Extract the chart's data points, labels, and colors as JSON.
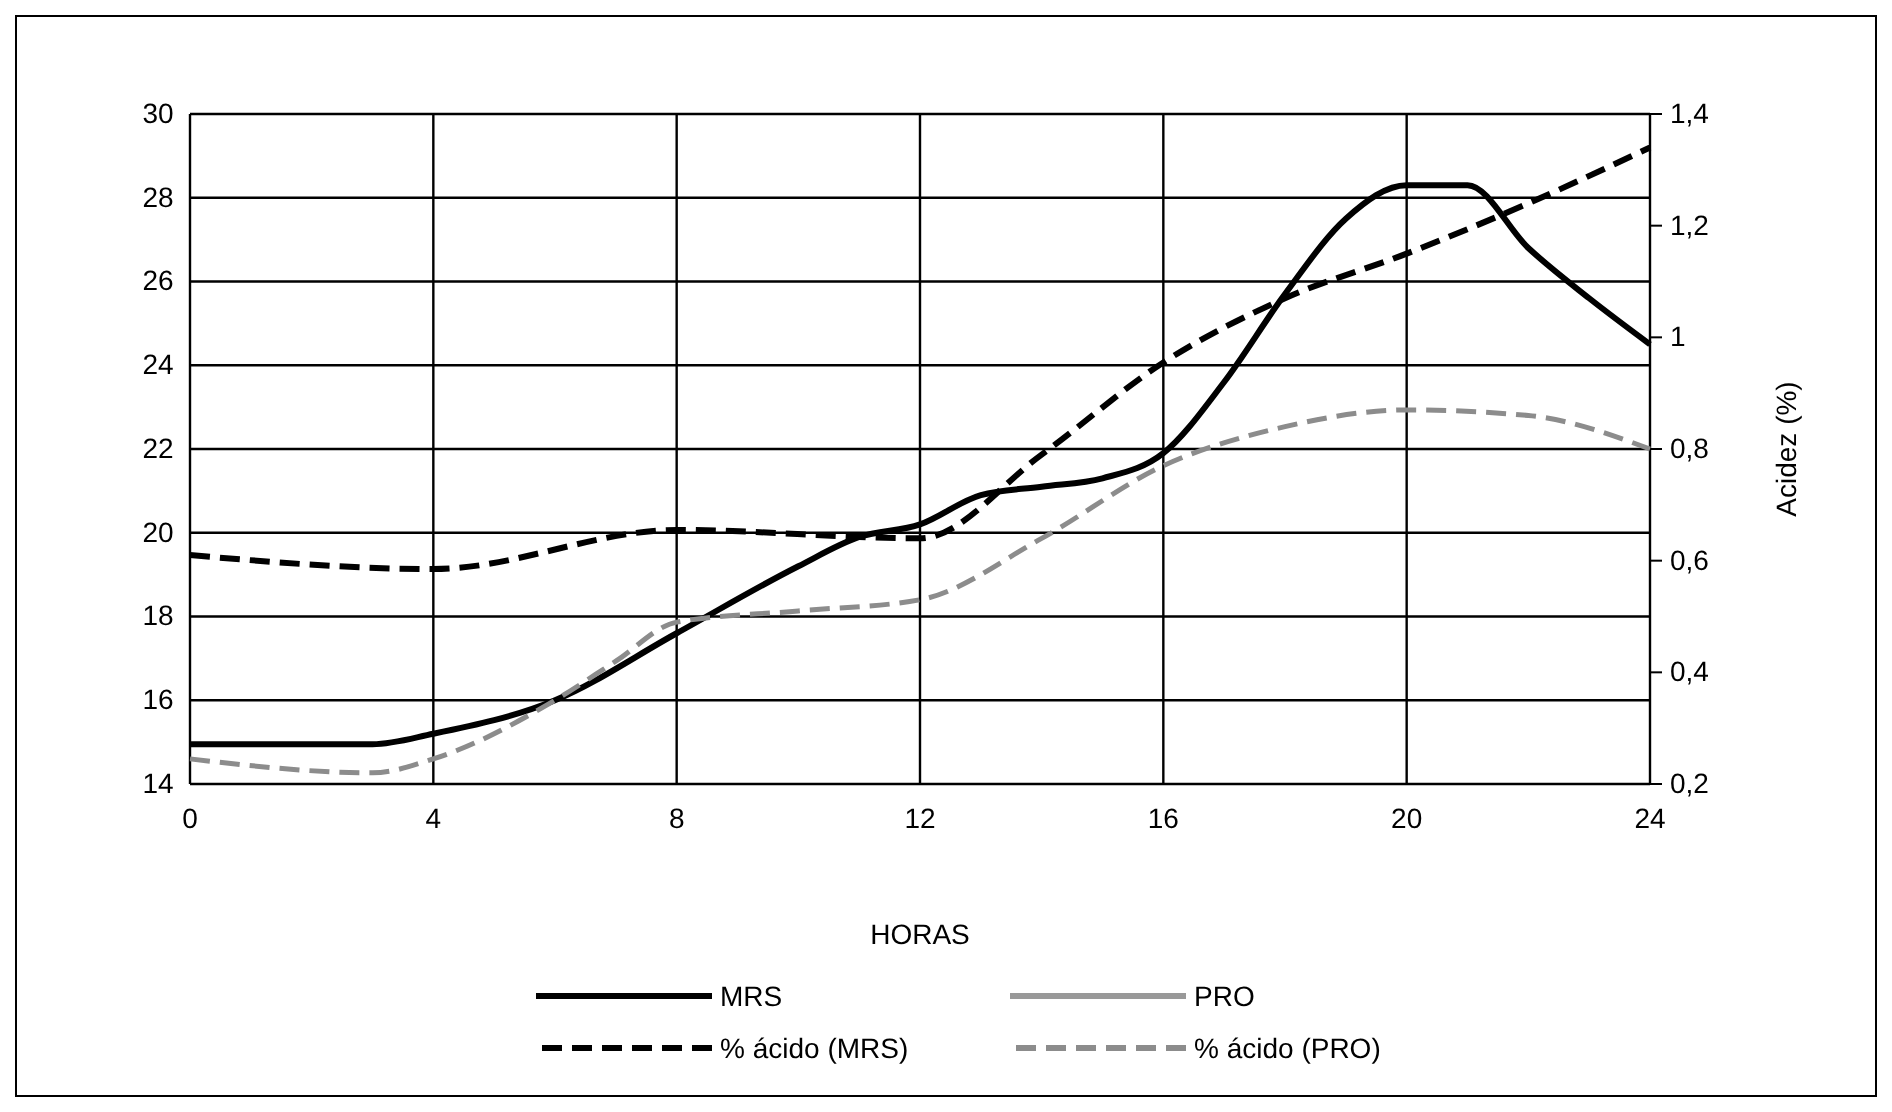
{
  "chart_data": {
    "type": "line",
    "xlabel": "HORAS",
    "y2label": "Acidez (%)",
    "xlim": [
      0,
      24
    ],
    "xticks": [
      0,
      4,
      8,
      12,
      16,
      20,
      24
    ],
    "ylim": [
      14,
      30
    ],
    "yticks": [
      14,
      16,
      18,
      20,
      22,
      24,
      26,
      28,
      30
    ],
    "y2lim": [
      0.2,
      1.4
    ],
    "y2ticks": [
      {
        "value": 0.2,
        "label": "0,2"
      },
      {
        "value": 0.4,
        "label": "0,4"
      },
      {
        "value": 0.6,
        "label": "0,6"
      },
      {
        "value": 0.8,
        "label": "0,8"
      },
      {
        "value": 1,
        "label": "1"
      },
      {
        "value": 1.2,
        "label": "1,2"
      },
      {
        "value": 1.4,
        "label": "1,4"
      }
    ],
    "grid": true,
    "legend": "bottom",
    "marker": "none",
    "series": [
      {
        "name": "MRS",
        "color": "#000000",
        "line_style": "solid",
        "x": [
          0,
          3,
          4,
          6,
          8,
          10,
          11,
          12,
          13,
          14,
          15,
          16,
          17,
          18,
          19,
          20,
          21,
          22,
          23,
          24
        ],
        "values": [
          14.95,
          14.95,
          15.2,
          16,
          17.6,
          19.2,
          19.9,
          20.2,
          20.9,
          21.1,
          21.3,
          21.9,
          23.6,
          25.7,
          27.5,
          28.3,
          28.3,
          26.8,
          25.6,
          24.5
        ]
      },
      {
        "name": "PRO",
        "color": "#999999",
        "line_style": "solid",
        "values": [
          null
        ]
      },
      {
        "name": "% ácido (MRS)",
        "color": "#000000",
        "line_style": "dashed",
        "axis": "y2",
        "x": [
          0,
          4,
          8,
          12,
          14,
          16,
          18,
          20,
          22,
          24
        ],
        "values": [
          0.61,
          0.585,
          0.655,
          0.64,
          0.79,
          0.955,
          1.07,
          1.15,
          1.24,
          1.34
        ]
      },
      {
        "name": "% ácido (PRO)",
        "color": "#8c8c8c",
        "line_style": "dashed",
        "axis": "y2",
        "x": [
          0,
          3,
          4,
          6,
          7,
          8,
          10,
          12,
          14,
          16,
          18,
          20,
          22,
          24
        ],
        "values": [
          0.245,
          0.22,
          0.245,
          0.35,
          0.42,
          0.49,
          0.51,
          0.53,
          0.64,
          0.77,
          0.84,
          0.87,
          0.86,
          0.8
        ]
      }
    ]
  }
}
